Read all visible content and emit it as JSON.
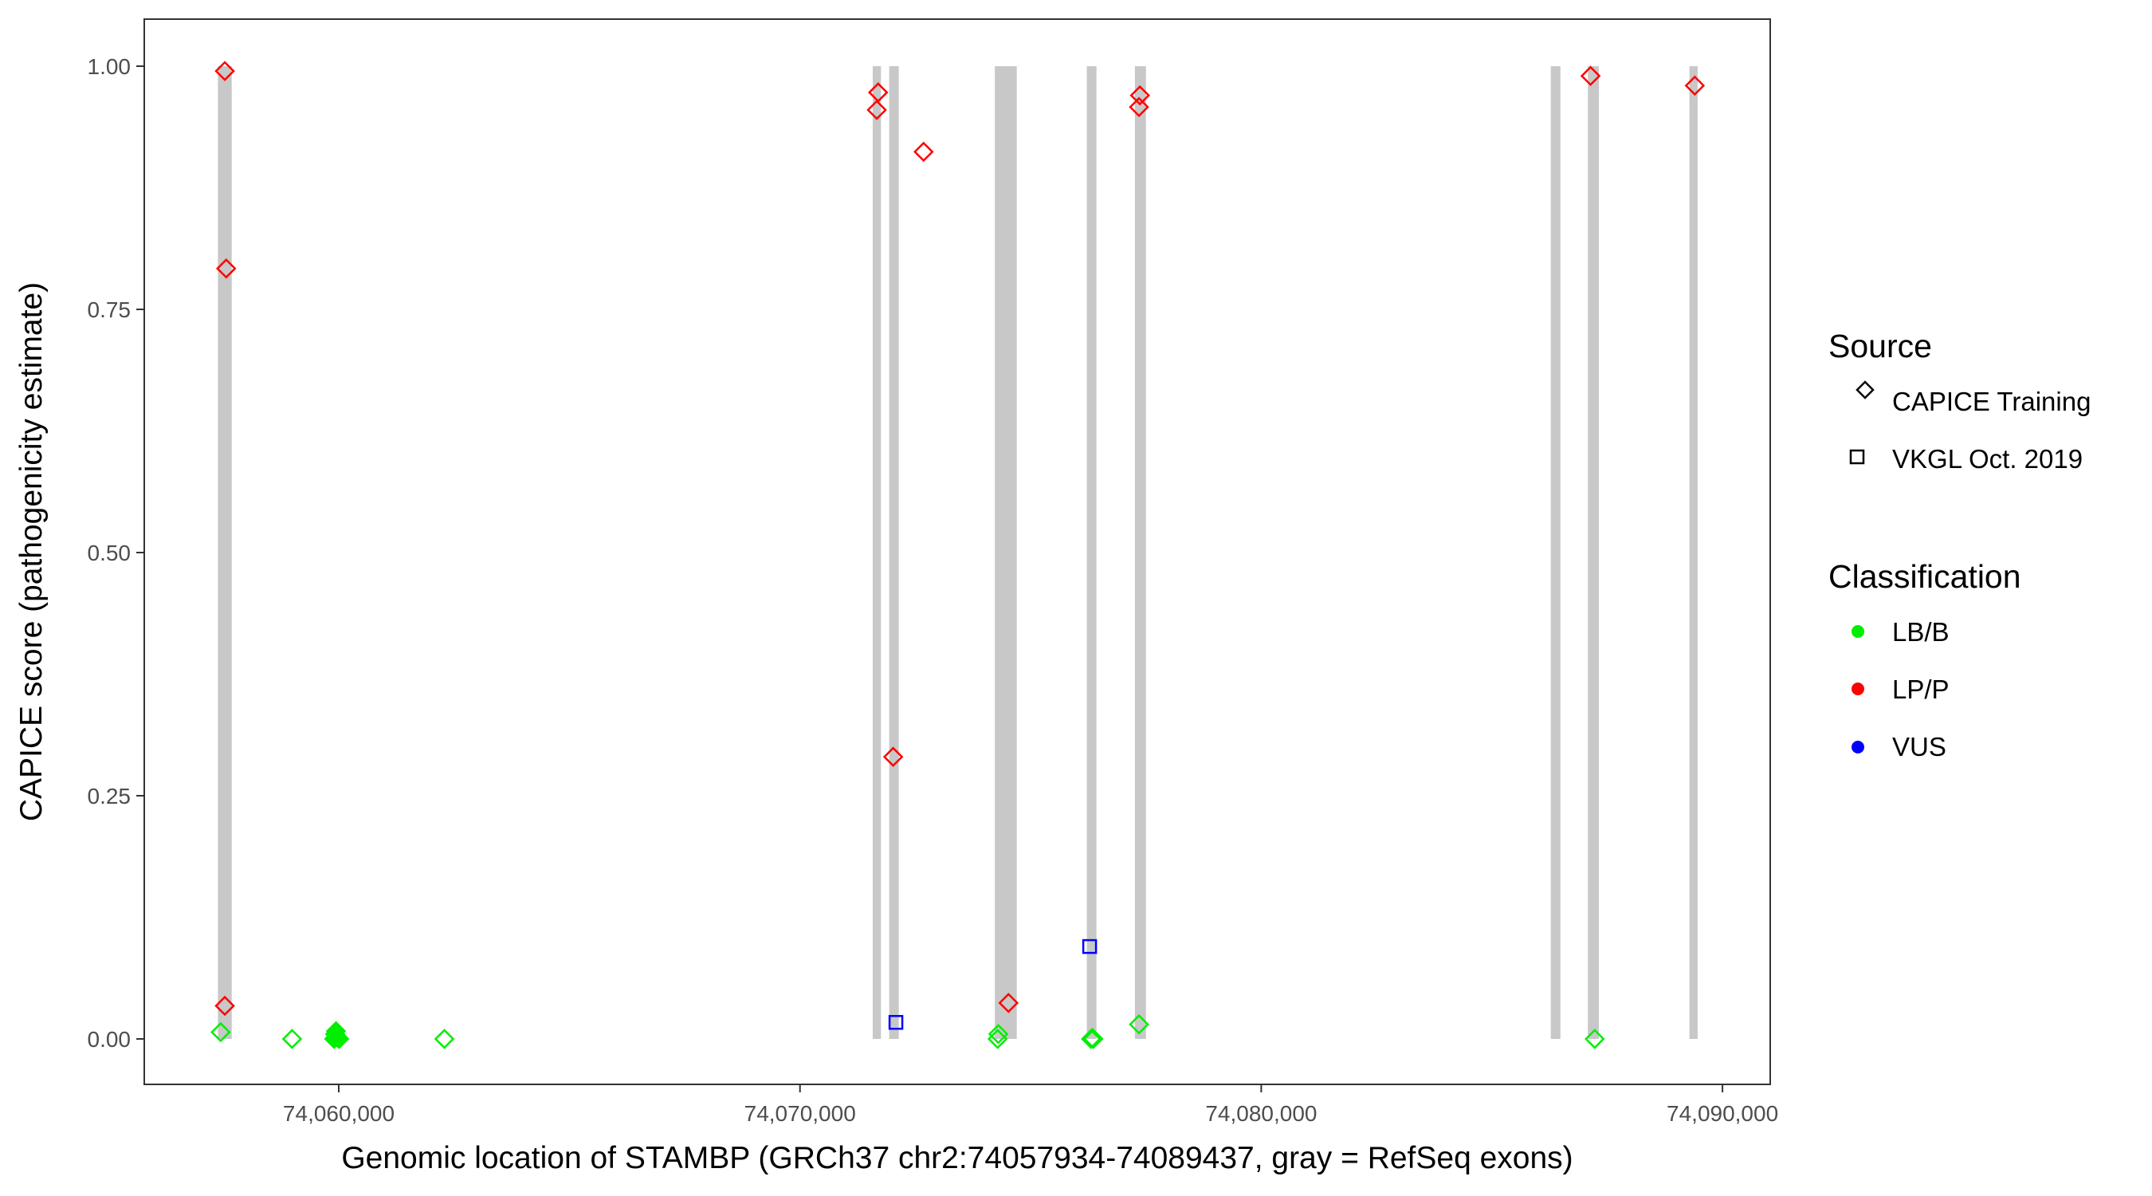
{
  "chart_data": {
    "type": "scatter",
    "title": "",
    "xlabel": "Genomic location of STAMBP (GRCh37 chr2:74057934-74089437, gray = RefSeq exons)",
    "ylabel": "CAPICE score (pathogenicity estimate)",
    "xlim": [
      74056200,
      74091500
    ],
    "ylim": [
      -0.047,
      1.05
    ],
    "x_ticks": [
      74060000,
      74070000,
      74080000,
      74090000
    ],
    "x_tick_labels": [
      "74,060,000",
      "74,070,000",
      "74,080,000",
      "74,090,000"
    ],
    "y_ticks": [
      0,
      0.25,
      0.5,
      0.75,
      1.0
    ],
    "y_tick_labels": [
      "0.00",
      "0.25",
      "0.50",
      "0.75",
      "1.00"
    ],
    "grid": false,
    "exon_color": "#c8c8c8",
    "exons": [
      [
        74057380,
        74057680
      ],
      [
        74071577,
        74071755
      ],
      [
        74071934,
        74072142
      ],
      [
        74074225,
        74074700
      ],
      [
        74076219,
        74076428
      ],
      [
        74077261,
        74077500
      ],
      [
        74086278,
        74086486
      ],
      [
        74087082,
        74087320
      ],
      [
        74089284,
        74089462
      ]
    ],
    "legend_position": "right",
    "legend": {
      "source_title": "Source",
      "source_items": [
        {
          "label": "CAPICE Training",
          "shape": "diamond"
        },
        {
          "label": "VKGL Oct. 2019",
          "shape": "square"
        }
      ],
      "classification_title": "Classification",
      "classification_items": [
        {
          "label": "LB/B",
          "color": "#00ee00"
        },
        {
          "label": "LP/P",
          "color": "#ff0000"
        },
        {
          "label": "VUS",
          "color": "#0000ff"
        }
      ]
    },
    "points": [
      {
        "x": 74057530,
        "y": 0.995,
        "source": "CAPICE Training",
        "class": "LP/P"
      },
      {
        "x": 74057560,
        "y": 0.792,
        "source": "CAPICE Training",
        "class": "LP/P"
      },
      {
        "x": 74057530,
        "y": 0.034,
        "source": "CAPICE Training",
        "class": "LP/P"
      },
      {
        "x": 74057440,
        "y": 0.007,
        "source": "CAPICE Training",
        "class": "LB/B"
      },
      {
        "x": 74058988,
        "y": 0.0,
        "source": "CAPICE Training",
        "class": "LB/B"
      },
      {
        "x": 74059920,
        "y": 0.005,
        "source": "CAPICE Training",
        "class": "LB/B"
      },
      {
        "x": 74059950,
        "y": 0.003,
        "source": "CAPICE Training",
        "class": "LB/B"
      },
      {
        "x": 74059980,
        "y": 0.001,
        "source": "CAPICE Training",
        "class": "LB/B"
      },
      {
        "x": 74059900,
        "y": 0.0,
        "source": "CAPICE Training",
        "class": "LB/B"
      },
      {
        "x": 74060010,
        "y": 0.0,
        "source": "CAPICE Training",
        "class": "LB/B"
      },
      {
        "x": 74059940,
        "y": 0.008,
        "source": "CAPICE Training",
        "class": "LB/B"
      },
      {
        "x": 74062290,
        "y": 0.0,
        "source": "CAPICE Training",
        "class": "LB/B"
      },
      {
        "x": 74071695,
        "y": 0.973,
        "source": "CAPICE Training",
        "class": "LP/P"
      },
      {
        "x": 74071665,
        "y": 0.955,
        "source": "CAPICE Training",
        "class": "LP/P"
      },
      {
        "x": 74072680,
        "y": 0.912,
        "source": "CAPICE Training",
        "class": "LP/P"
      },
      {
        "x": 74072020,
        "y": 0.29,
        "source": "CAPICE Training",
        "class": "LP/P"
      },
      {
        "x": 74072080,
        "y": 0.017,
        "source": "VKGL Oct. 2019",
        "class": "VUS"
      },
      {
        "x": 74074285,
        "y": 0.0,
        "source": "CAPICE Training",
        "class": "LB/B"
      },
      {
        "x": 74074300,
        "y": 0.005,
        "source": "CAPICE Training",
        "class": "LB/B"
      },
      {
        "x": 74074520,
        "y": 0.037,
        "source": "CAPICE Training",
        "class": "LP/P"
      },
      {
        "x": 74076280,
        "y": 0.095,
        "source": "VKGL Oct. 2019",
        "class": "VUS"
      },
      {
        "x": 74076310,
        "y": 0.0,
        "source": "CAPICE Training",
        "class": "LB/B"
      },
      {
        "x": 74076360,
        "y": 0.0,
        "source": "CAPICE Training",
        "class": "LB/B"
      },
      {
        "x": 74076340,
        "y": 0.001,
        "source": "CAPICE Training",
        "class": "LB/B"
      },
      {
        "x": 74077350,
        "y": 0.015,
        "source": "CAPICE Training",
        "class": "LB/B"
      },
      {
        "x": 74077370,
        "y": 0.97,
        "source": "CAPICE Training",
        "class": "LP/P"
      },
      {
        "x": 74077350,
        "y": 0.958,
        "source": "CAPICE Training",
        "class": "LP/P"
      },
      {
        "x": 74087140,
        "y": 0.99,
        "source": "CAPICE Training",
        "class": "LP/P"
      },
      {
        "x": 74087230,
        "y": 0.0,
        "source": "CAPICE Training",
        "class": "LB/B"
      },
      {
        "x": 74089400,
        "y": 0.98,
        "source": "CAPICE Training",
        "class": "LP/P"
      }
    ]
  }
}
